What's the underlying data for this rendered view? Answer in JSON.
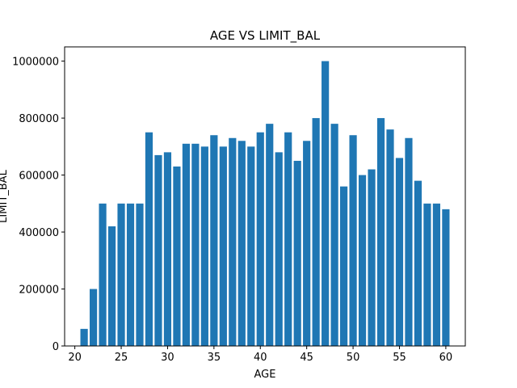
{
  "chart_data": {
    "type": "bar",
    "title": "AGE VS LIMIT_BAL",
    "xlabel": "AGE",
    "ylabel": "LIMIT_BAL",
    "bar_color": "#1f77b4",
    "x": [
      21,
      22,
      23,
      24,
      25,
      26,
      27,
      28,
      29,
      30,
      31,
      32,
      33,
      34,
      35,
      36,
      37,
      38,
      39,
      40,
      41,
      42,
      43,
      44,
      45,
      46,
      47,
      48,
      49,
      50,
      51,
      52,
      53,
      54,
      55,
      56,
      57,
      58,
      59,
      60
    ],
    "values": [
      60000,
      200000,
      500000,
      420000,
      500000,
      500000,
      500000,
      750000,
      670000,
      680000,
      630000,
      710000,
      710000,
      700000,
      740000,
      700000,
      730000,
      720000,
      700000,
      750000,
      780000,
      680000,
      750000,
      650000,
      720000,
      800000,
      1000000,
      780000,
      560000,
      740000,
      600000,
      620000,
      800000,
      760000,
      660000,
      730000,
      580000,
      500000,
      500000,
      480000
    ],
    "xlim": [
      18.9,
      62.1
    ],
    "ylim": [
      0,
      1050000
    ],
    "xticks": [
      20,
      25,
      30,
      35,
      40,
      45,
      50,
      55,
      60
    ],
    "yticks": [
      0,
      200000,
      400000,
      600000,
      800000,
      1000000
    ],
    "grid": false,
    "legend": false
  }
}
